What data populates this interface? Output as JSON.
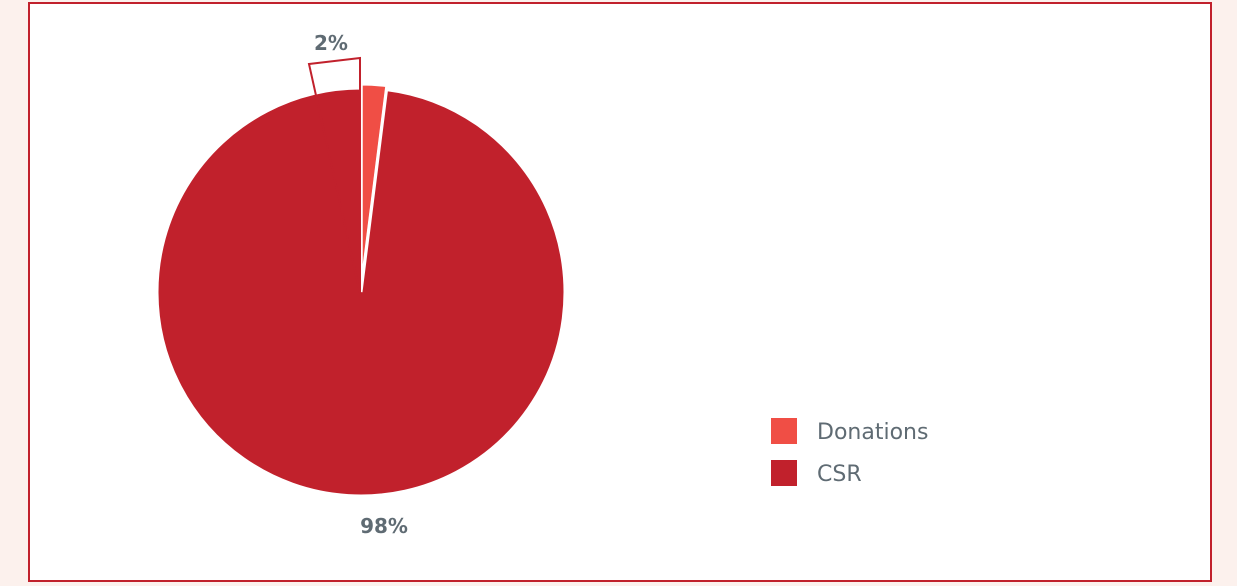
{
  "chart_data": {
    "type": "pie",
    "slices": [
      {
        "label": "Donations",
        "value": 2,
        "display": "2%",
        "color": "#f04e45"
      },
      {
        "label": "CSR",
        "value": 98,
        "display": "98%",
        "color": "#c1212c"
      }
    ],
    "legend_position": "right",
    "style": {
      "background": "#fcf1ed",
      "border_color": "#c1212c",
      "label_color": "#5f6b73"
    }
  }
}
